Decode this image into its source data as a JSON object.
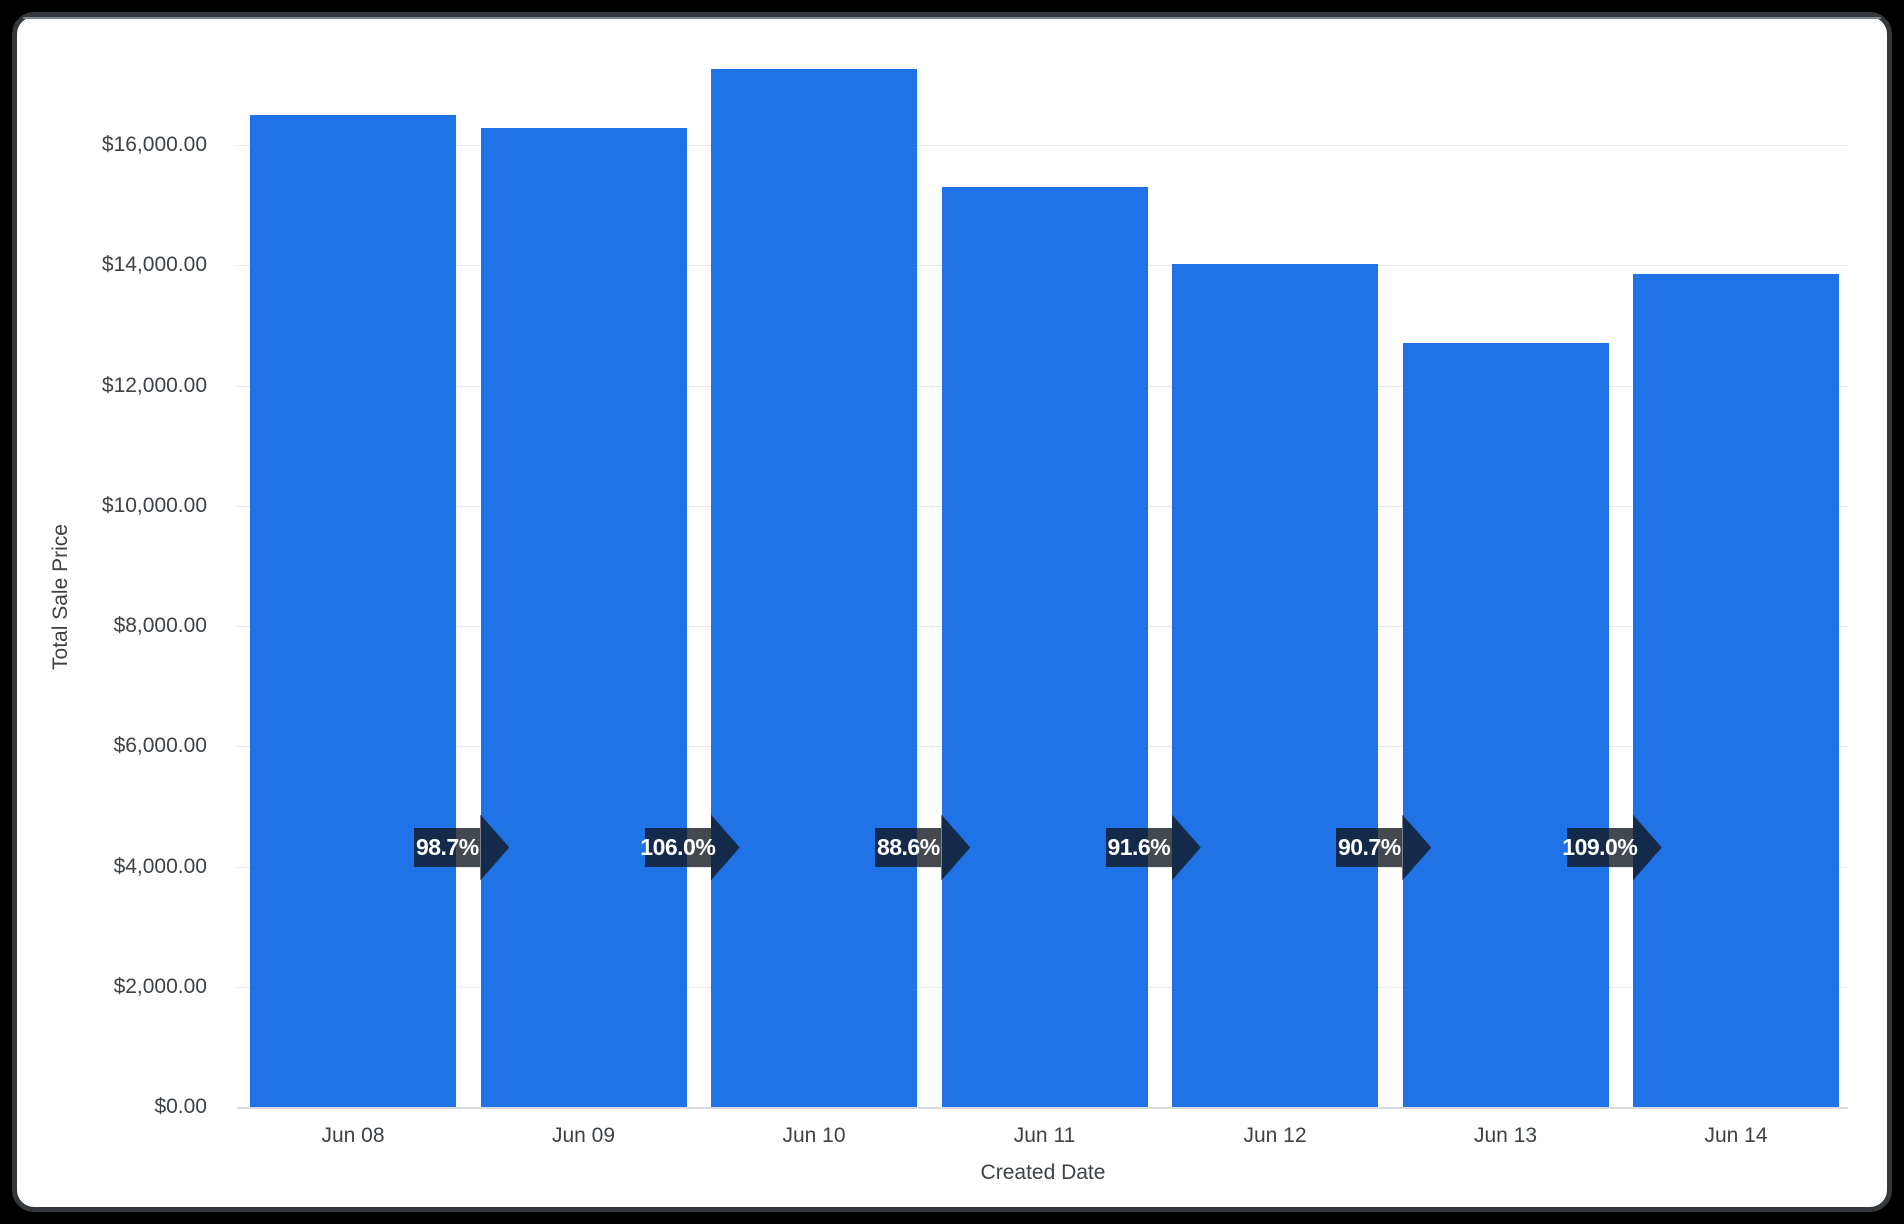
{
  "window": {
    "background_color": "#000000",
    "card_border_color": "#34383c",
    "card_background": "#ffffff"
  },
  "chart_data": {
    "type": "bar",
    "xlabel": "Created Date",
    "ylabel": "Total Sale Price",
    "categories": [
      "Jun 08",
      "Jun 09",
      "Jun 10",
      "Jun 11",
      "Jun 12",
      "Jun 13",
      "Jun 14"
    ],
    "values": [
      16500,
      16290,
      17270,
      15300,
      14015,
      12710,
      13855
    ],
    "growth_labels": [
      "98.7%",
      "106.0%",
      "88.6%",
      "91.6%",
      "90.7%",
      "109.0%"
    ],
    "y_tick_values": [
      0,
      2000,
      4000,
      6000,
      8000,
      10000,
      12000,
      14000,
      16000
    ],
    "y_tick_labels": [
      "$0.00",
      "$2,000.00",
      "$4,000.00",
      "$6,000.00",
      "$8,000.00",
      "$10,000.00",
      "$12,000.00",
      "$14,000.00",
      "$16,000.00"
    ],
    "ylim": [
      0,
      17500
    ],
    "grid": true,
    "legend": false,
    "bar_color": "#2073e6",
    "gridline_color": "#e9e9e9",
    "baseline_color": "#d7dade",
    "label_color": "#3d4246",
    "arrow_color": "rgba(15,22,30,0.78)",
    "arrow_text_color": "#ffffff"
  }
}
